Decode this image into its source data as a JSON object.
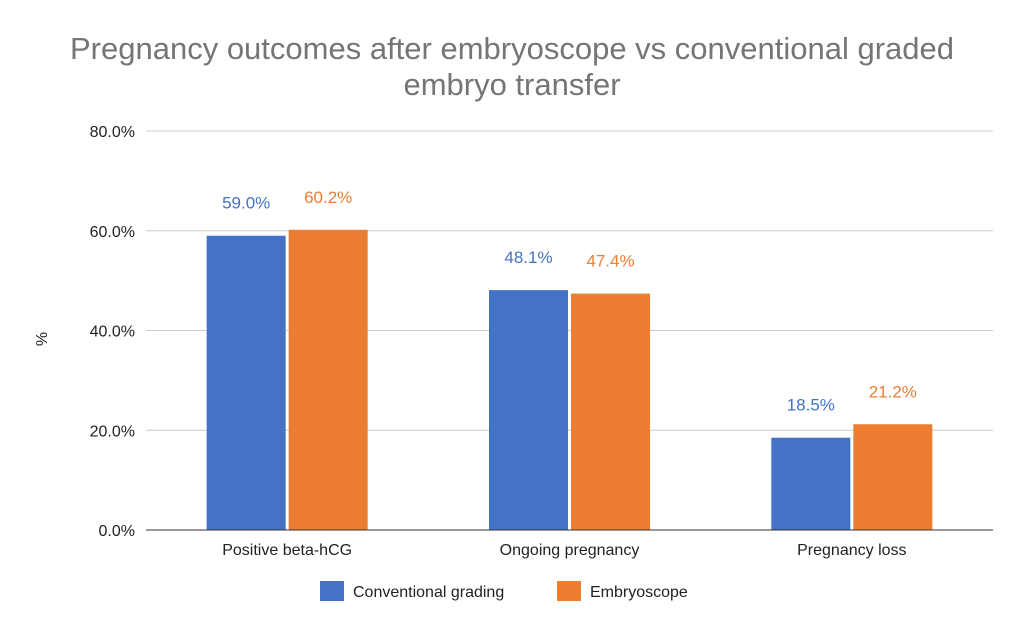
{
  "chart_data": {
    "type": "bar",
    "title_lines": [
      "Pregnancy outcomes after embryoscope vs conventional graded",
      "embryo transfer"
    ],
    "categories": [
      "Positive beta-hCG",
      "Ongoing pregnancy",
      "Pregnancy loss"
    ],
    "series": [
      {
        "name": "Conventional grading",
        "color": "#4472c4",
        "values": [
          59.0,
          48.1,
          18.5
        ],
        "labels": [
          "59.0%",
          "48.1%",
          "18.5%"
        ]
      },
      {
        "name": "Embryoscope",
        "color": "#ed7d31",
        "values": [
          60.2,
          47.4,
          21.2
        ],
        "labels": [
          "60.2%",
          "47.4%",
          "21.2%"
        ]
      }
    ],
    "ylabel": "%",
    "ylim": [
      0,
      80
    ],
    "yticks": [
      0,
      20,
      40,
      60,
      80
    ],
    "ytick_labels": [
      "0.0%",
      "20.0%",
      "40.0%",
      "60.0%",
      "80.0%"
    ],
    "grid": true,
    "legend_position": "bottom"
  }
}
